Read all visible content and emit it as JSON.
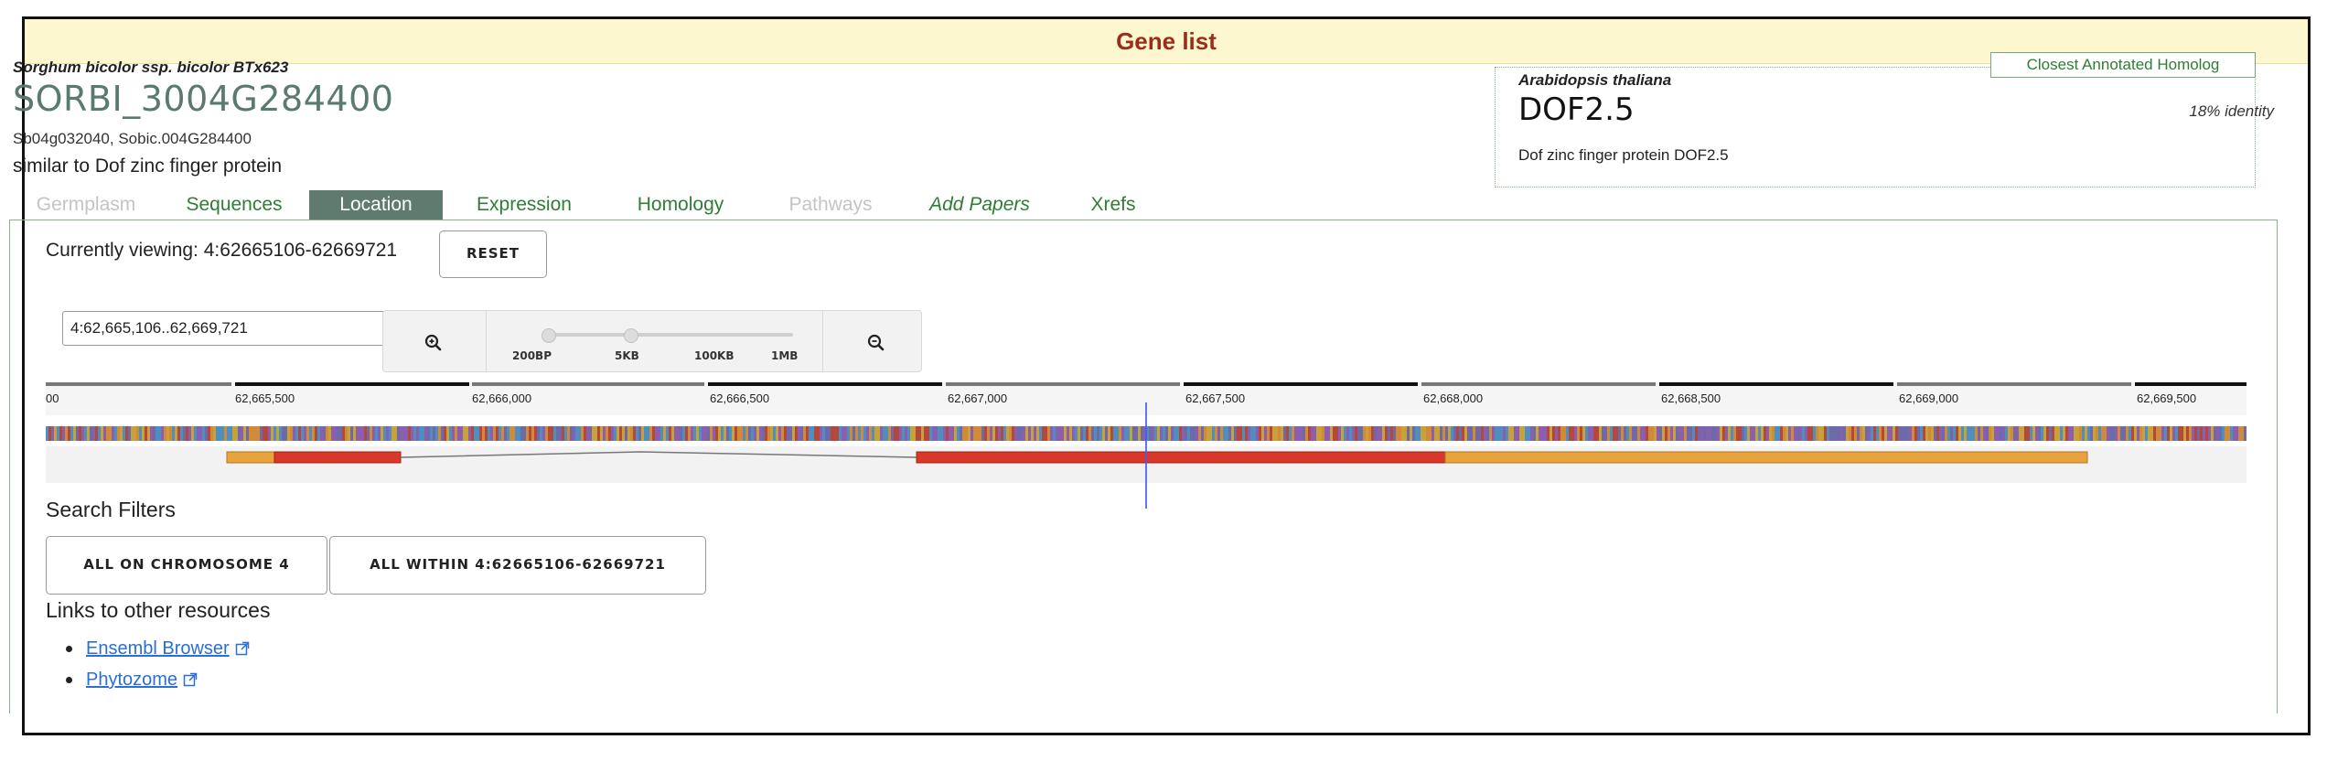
{
  "header": {
    "title": "Gene list"
  },
  "gene": {
    "species": "Sorghum bicolor ssp. bicolor BTx623",
    "id": "SORBI_3004G284400",
    "synonyms": "Sb04g032040, Sobic.004G284400",
    "summary": "similar to Dof zinc finger protein"
  },
  "homolog": {
    "tag": "Closest Annotated Homolog",
    "species": "Arabidopsis thaliana",
    "name": "DOF2.5",
    "identity": "18% identity",
    "description": "Dof zinc finger protein DOF2.5"
  },
  "tabs": [
    {
      "label": "Germplasm",
      "state": "disabled"
    },
    {
      "label": "Sequences",
      "state": "normal"
    },
    {
      "label": "Location",
      "state": "active"
    },
    {
      "label": "Expression",
      "state": "normal"
    },
    {
      "label": "Homology",
      "state": "normal"
    },
    {
      "label": "Pathways",
      "state": "disabled"
    },
    {
      "label": "Add Papers",
      "state": "italic"
    },
    {
      "label": "Xrefs",
      "state": "normal"
    }
  ],
  "location": {
    "currently_viewing": "Currently viewing: 4:62665106-62669721",
    "reset_label": "RESET",
    "input_value": "4:62,665,106..62,669,721",
    "zoom_labels": [
      "200BP",
      "5KB",
      "100KB",
      "1MB"
    ],
    "zoom_in_icon": "zoom-in-icon",
    "zoom_out_icon": "zoom-out-icon"
  },
  "ruler": {
    "ticks": [
      "00",
      "62,665,500",
      "62,666,000",
      "62,666,500",
      "62,667,000",
      "62,667,500",
      "62,668,000",
      "62,668,500",
      "62,669,000",
      "62,669,500"
    ]
  },
  "colors": {
    "utr": "#e8a33d",
    "cds": "#d9372a",
    "tab_active": "#5f7b6f",
    "link": "#2a6fd6",
    "header_title": "#9a2e1c"
  },
  "search_filters": {
    "title": "Search Filters",
    "chromosome_button": "ALL ON CHROMOSOME 4",
    "within_button": "ALL WITHIN 4:62665106-62669721"
  },
  "links": {
    "title": "Links to other resources",
    "items": [
      "Ensembl Browser",
      "Phytozome"
    ]
  }
}
